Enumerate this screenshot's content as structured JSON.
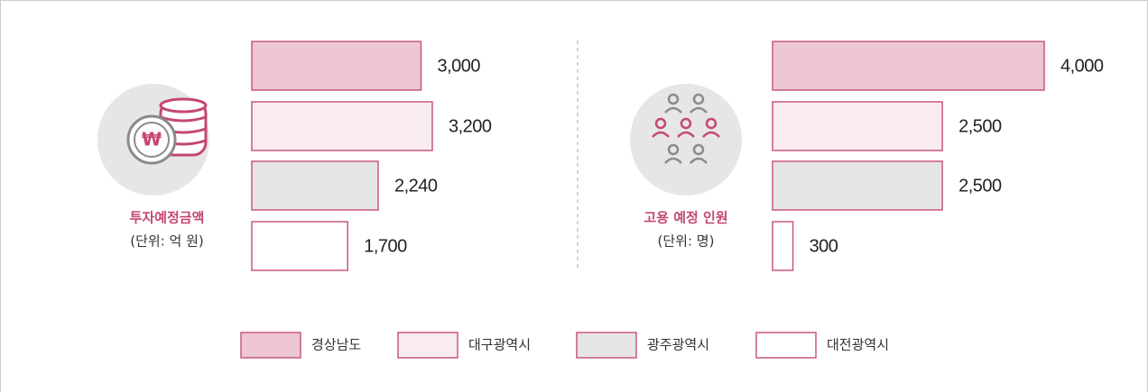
{
  "chart_data": [
    {
      "type": "bar",
      "title": "투자예정금액",
      "subtitle": "(단위: 억 원)",
      "values": [
        3000,
        3200,
        2240,
        1700
      ],
      "value_labels": [
        "3,000",
        "3,200",
        "2,240",
        "1,700"
      ]
    },
    {
      "type": "bar",
      "title": "고용 예정 인원",
      "subtitle": "(단위: 명)",
      "values": [
        4000,
        2500,
        2500,
        300
      ],
      "value_labels": [
        "4,000",
        "2,500",
        "2,500",
        "300"
      ]
    }
  ],
  "legend": {
    "categories": [
      "경상남도",
      "대구광역시",
      "광주광역시",
      "대전광역시"
    ],
    "colors": [
      "#edc7d4",
      "#f9ecf1",
      "#e6e6e6",
      "#ffffff"
    ],
    "edge_color": "#c9587f"
  }
}
